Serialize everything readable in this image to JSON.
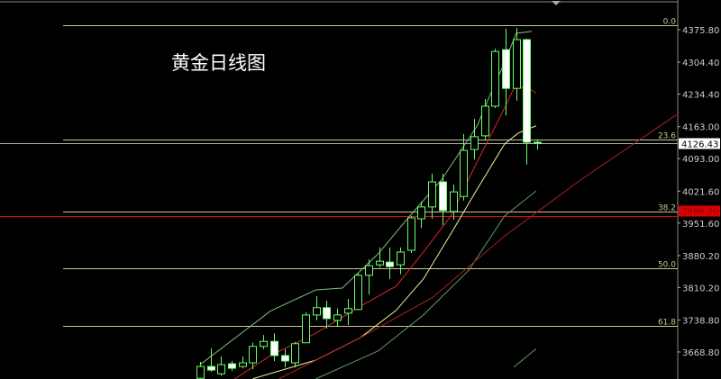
{
  "chart_data": {
    "type": "candlestick",
    "title": "黄金日线图",
    "ylim": [
      3600,
      4390
    ],
    "y_ticks": [
      "4375.80",
      "4304.40",
      "4234.40",
      "4163.00",
      "4093.00",
      "4021.60",
      "3951.60",
      "3880.20",
      "3810.20",
      "3738.80",
      "3668.80"
    ],
    "current_price": "4126.43",
    "red_level_label": "3966.20",
    "red_level": 3966.2,
    "fib_levels": [
      {
        "label": "0.0",
        "price": 4386
      },
      {
        "label": "23.6",
        "price": 4135
      },
      {
        "label": "38.2",
        "price": 3977
      },
      {
        "label": "50.0",
        "price": 3852
      },
      {
        "label": "61.8",
        "price": 3726
      }
    ],
    "candles": [
      [
        3611,
        3647,
        3610,
        3637
      ],
      [
        3637,
        3677,
        3625,
        3629
      ],
      [
        3621,
        3659,
        3617,
        3641
      ],
      [
        3643,
        3649,
        3627,
        3633
      ],
      [
        3637,
        3659,
        3633,
        3645
      ],
      [
        3645,
        3689,
        3631,
        3681
      ],
      [
        3681,
        3706,
        3675,
        3692
      ],
      [
        3692,
        3710,
        3649,
        3661
      ],
      [
        3661,
        3675,
        3635,
        3649
      ],
      [
        3645,
        3691,
        3635,
        3687
      ],
      [
        3689,
        3756,
        3689,
        3750
      ],
      [
        3750,
        3791,
        3738,
        3766
      ],
      [
        3766,
        3781,
        3720,
        3742
      ],
      [
        3738,
        3764,
        3724,
        3750
      ],
      [
        3754,
        3785,
        3728,
        3764
      ],
      [
        3762,
        3841,
        3760,
        3837
      ],
      [
        3837,
        3872,
        3795,
        3858
      ],
      [
        3860,
        3898,
        3854,
        3868
      ],
      [
        3866,
        3898,
        3829,
        3856
      ],
      [
        3860,
        3898,
        3839,
        3888
      ],
      [
        3892,
        3967,
        3886,
        3963
      ],
      [
        3961,
        3999,
        3941,
        3987
      ],
      [
        3987,
        4060,
        3961,
        4042
      ],
      [
        4042,
        4060,
        3947,
        3979
      ],
      [
        3977,
        4036,
        3959,
        4020
      ],
      [
        4010,
        4147,
        4001,
        4111
      ],
      [
        4113,
        4180,
        4091,
        4141
      ],
      [
        4143,
        4224,
        4135,
        4208
      ],
      [
        4208,
        4334,
        4204,
        4328
      ],
      [
        4332,
        4378,
        4188,
        4247
      ],
      [
        4247,
        4380,
        4220,
        4354
      ],
      [
        4354,
        4356,
        4080,
        4129
      ],
      [
        4129,
        4135,
        4113,
        4126.43
      ]
    ],
    "candle_fields": [
      "open",
      "high",
      "low",
      "close"
    ],
    "indicator_lines": [
      {
        "color": "#7fbf7f",
        "points": [
          [
            0,
            3641
          ],
          [
            6.7,
            3759
          ],
          [
            11,
            3805
          ],
          [
            13.5,
            3809
          ],
          [
            16.9,
            3884
          ],
          [
            19.9,
            3967
          ],
          [
            22.9,
            4046
          ],
          [
            26.3,
            4165
          ],
          [
            27.9,
            4253
          ],
          [
            28.9,
            4303
          ],
          [
            30,
            4368
          ],
          [
            31.5,
            4372
          ]
        ]
      },
      {
        "color": "#d42a2a",
        "points": [
          [
            3.3,
            3610
          ],
          [
            6.7,
            3661
          ],
          [
            11,
            3710
          ],
          [
            15.2,
            3769
          ],
          [
            18.6,
            3813
          ],
          [
            21.2,
            3888
          ],
          [
            23.8,
            3967
          ],
          [
            26.3,
            4086
          ],
          [
            28.9,
            4204
          ],
          [
            29.9,
            4253
          ],
          [
            31.5,
            4243
          ],
          [
            31.9,
            4236
          ]
        ]
      },
      {
        "color": "#f0f0a0",
        "points": [
          [
            5,
            3610
          ],
          [
            11,
            3651
          ],
          [
            15.2,
            3700
          ],
          [
            18.6,
            3760
          ],
          [
            21.2,
            3829
          ],
          [
            23.8,
            3928
          ],
          [
            26.3,
            4026
          ],
          [
            28.9,
            4125
          ],
          [
            30.2,
            4149
          ],
          [
            31.9,
            4165
          ]
        ]
      },
      {
        "color": "#5f9f5f",
        "points": [
          [
            11,
            3610
          ],
          [
            16.9,
            3671
          ],
          [
            21.2,
            3750
          ],
          [
            25.5,
            3848
          ],
          [
            28.9,
            3967
          ],
          [
            31.9,
            4022
          ]
        ]
      },
      {
        "color": "#b02020",
        "points": [
          [
            7.5,
            3610
          ],
          [
            15.2,
            3700
          ],
          [
            22.1,
            3789
          ],
          [
            28.9,
            3923
          ],
          [
            35.8,
            4041
          ],
          [
            45.2,
            4189
          ]
        ]
      },
      {
        "color": "#5f9f5f",
        "points": [
          [
            29.8,
            3636
          ],
          [
            31.9,
            3676
          ]
        ]
      }
    ],
    "colors": {
      "background": "#000000",
      "candle": "#66ff66",
      "bear_fill": "#ffffff",
      "fib": "#c8c890",
      "axis_text": "#cccccc"
    }
  }
}
